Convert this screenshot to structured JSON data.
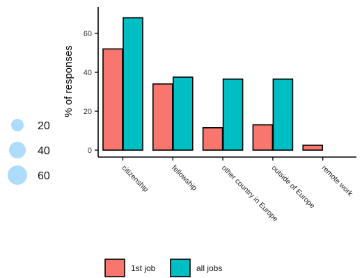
{
  "chart_data": {
    "type": "bar",
    "title": "",
    "xlabel": "",
    "ylabel": "% of responses",
    "ylim": [
      0,
      73
    ],
    "yticks": [
      0,
      20,
      40,
      60
    ],
    "grid": false,
    "categories": [
      "citizenship",
      "fellowship",
      "other country in Europe",
      "outside of Europe",
      "remote work"
    ],
    "series": [
      {
        "name": "1st job",
        "color": "#F8766D",
        "values": [
          52,
          34,
          11.5,
          13,
          2.5
        ]
      },
      {
        "name": "all jobs",
        "color": "#00BFC4",
        "values": [
          68,
          37.5,
          36.5,
          36.5,
          null
        ]
      }
    ],
    "size_legend": {
      "values": [
        20,
        40,
        60
      ],
      "color": "#ADDDFA",
      "placement": "left"
    },
    "legend": {
      "placement": "bottom",
      "entries": [
        "1st job",
        "all jobs"
      ]
    }
  }
}
